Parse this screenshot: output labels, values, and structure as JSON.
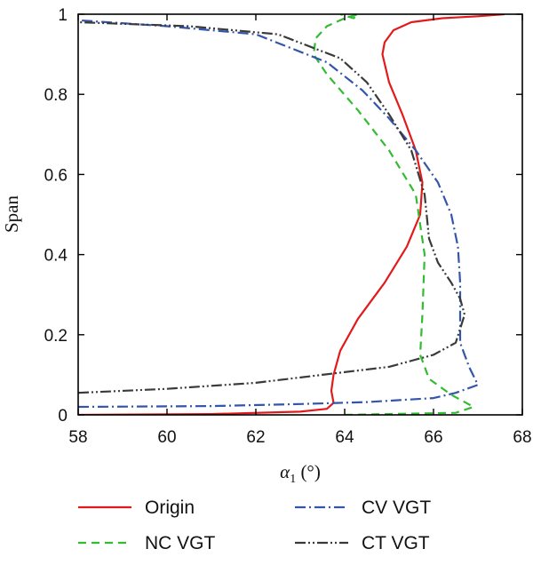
{
  "chart_data": {
    "type": "line",
    "title": "",
    "xlabel": "α1 (°)",
    "xlabel_main": "α",
    "xlabel_sub": "1",
    "xlabel_rest": " (°)",
    "ylabel": "Span",
    "xlim": [
      58,
      68
    ],
    "ylim": [
      0,
      1
    ],
    "xticks": [
      "58",
      "60",
      "62",
      "64",
      "66",
      "68"
    ],
    "yticks": [
      "0",
      "0.2",
      "0.4",
      "0.6",
      "0.8",
      "1"
    ],
    "grid": false,
    "legend_position": "bottom",
    "series": [
      {
        "name": "Origin",
        "color": "#e31a1c",
        "dash": "solid",
        "x": [
          58.0,
          61.0,
          63.0,
          63.6,
          63.75,
          63.7,
          63.75,
          63.9,
          64.3,
          64.9,
          65.4,
          65.7,
          65.75,
          65.6,
          65.3,
          65.0,
          64.85,
          64.9,
          65.1,
          65.5,
          66.2,
          67.0,
          67.6
        ],
        "y": [
          0.0,
          0.002,
          0.008,
          0.015,
          0.03,
          0.06,
          0.1,
          0.16,
          0.24,
          0.33,
          0.42,
          0.5,
          0.58,
          0.66,
          0.75,
          0.83,
          0.9,
          0.93,
          0.96,
          0.98,
          0.99,
          0.995,
          1.0
        ]
      },
      {
        "name": "NC VGT",
        "color": "#33bb33",
        "dash": "dash",
        "x": [
          64.0,
          66.5,
          66.9,
          66.4,
          65.9,
          65.7,
          65.75,
          65.8,
          65.6,
          65.0,
          64.3,
          63.6,
          63.3,
          63.35,
          63.6,
          64.0,
          64.3,
          64.2,
          63.9
        ],
        "y": [
          0.0,
          0.005,
          0.02,
          0.05,
          0.09,
          0.15,
          0.25,
          0.4,
          0.55,
          0.66,
          0.76,
          0.85,
          0.9,
          0.94,
          0.97,
          0.99,
          1.0,
          0.99,
          1.0
        ]
      },
      {
        "name": "CV VGT",
        "color": "#3355aa",
        "dash": "dashdot",
        "x": [
          58.0,
          61.0,
          63.0,
          64.5,
          66.0,
          66.5,
          67.0,
          66.8,
          66.6,
          66.6,
          66.6,
          66.55,
          66.4,
          66.1,
          65.6,
          65.0,
          64.4,
          63.6,
          62.0,
          60.0,
          58.0
        ],
        "y": [
          0.02,
          0.022,
          0.027,
          0.032,
          0.042,
          0.055,
          0.075,
          0.12,
          0.18,
          0.25,
          0.33,
          0.42,
          0.5,
          0.58,
          0.66,
          0.74,
          0.81,
          0.88,
          0.95,
          0.97,
          0.985
        ]
      },
      {
        "name": "CT VGT",
        "color": "#3a3a3a",
        "dash": "dashdotdot",
        "x": [
          58.0,
          60.0,
          62.0,
          63.5,
          65.0,
          66.0,
          66.5,
          66.7,
          66.6,
          66.4,
          66.1,
          65.9,
          65.8,
          65.5,
          65.0,
          64.5,
          63.9,
          62.5,
          60.5,
          58.0
        ],
        "y": [
          0.055,
          0.065,
          0.08,
          0.1,
          0.12,
          0.15,
          0.18,
          0.25,
          0.29,
          0.33,
          0.38,
          0.44,
          0.55,
          0.66,
          0.75,
          0.83,
          0.89,
          0.95,
          0.97,
          0.98
        ]
      }
    ]
  }
}
